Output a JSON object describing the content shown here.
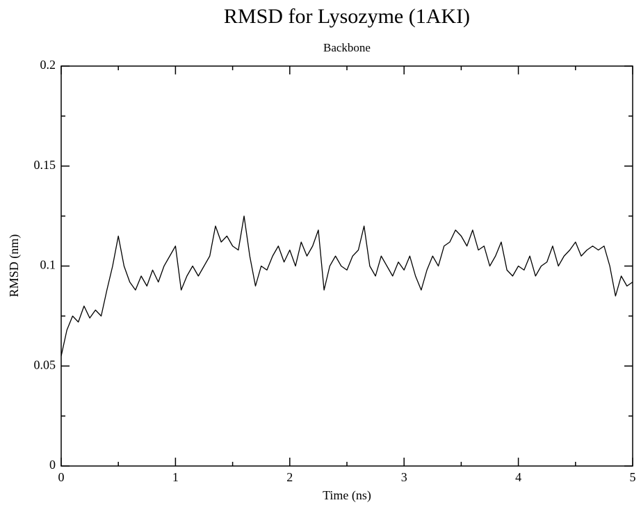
{
  "chart_data": {
    "type": "line",
    "title": "RMSD for Lysozyme (1AKI)",
    "subtitle": "Backbone",
    "x_label": "Time (ns)",
    "y_label": "RMSD (nm)",
    "xlim": [
      0,
      5
    ],
    "xticks": [
      0,
      1,
      2,
      3,
      4,
      5
    ],
    "x_minor_ticks": [
      0.5,
      1.5,
      2.5,
      3.5,
      4.5
    ],
    "ylim": [
      0,
      0.2
    ],
    "yticks": [
      0,
      0.05,
      0.1,
      0.15,
      0.2
    ],
    "y_minor_ticks": [
      0.025,
      0.075,
      0.125,
      0.175
    ],
    "series": [
      {
        "name": "Backbone",
        "color": "#000000",
        "x": [
          0,
          0.05,
          0.1,
          0.15,
          0.2,
          0.25,
          0.3,
          0.35,
          0.4,
          0.45,
          0.5,
          0.55,
          0.6,
          0.65,
          0.7,
          0.75,
          0.8,
          0.85,
          0.9,
          0.95,
          1,
          1.05,
          1.1,
          1.15,
          1.2,
          1.25,
          1.3,
          1.35,
          1.4,
          1.45,
          1.5,
          1.55,
          1.6,
          1.65,
          1.7,
          1.75,
          1.8,
          1.85,
          1.9,
          1.95,
          2,
          2.05,
          2.1,
          2.15,
          2.2,
          2.25,
          2.3,
          2.35,
          2.4,
          2.45,
          2.5,
          2.55,
          2.6,
          2.65,
          2.7,
          2.75,
          2.8,
          2.85,
          2.9,
          2.95,
          3,
          3.05,
          3.1,
          3.15,
          3.2,
          3.25,
          3.3,
          3.35,
          3.4,
          3.45,
          3.5,
          3.55,
          3.6,
          3.65,
          3.7,
          3.75,
          3.8,
          3.85,
          3.9,
          3.95,
          4,
          4.05,
          4.1,
          4.15,
          4.2,
          4.25,
          4.3,
          4.35,
          4.4,
          4.45,
          4.5,
          4.55,
          4.6,
          4.65,
          4.7,
          4.75,
          4.8,
          4.85,
          4.9,
          4.95,
          5
        ],
        "values": [
          0.055,
          0.068,
          0.075,
          0.072,
          0.08,
          0.074,
          0.078,
          0.075,
          0.088,
          0.1,
          0.115,
          0.1,
          0.092,
          0.088,
          0.095,
          0.09,
          0.098,
          0.092,
          0.1,
          0.105,
          0.11,
          0.088,
          0.095,
          0.1,
          0.095,
          0.1,
          0.105,
          0.12,
          0.112,
          0.115,
          0.11,
          0.108,
          0.125,
          0.105,
          0.09,
          0.1,
          0.098,
          0.105,
          0.11,
          0.102,
          0.108,
          0.1,
          0.112,
          0.105,
          0.11,
          0.118,
          0.088,
          0.1,
          0.105,
          0.1,
          0.098,
          0.105,
          0.108,
          0.12,
          0.1,
          0.095,
          0.105,
          0.1,
          0.095,
          0.102,
          0.098,
          0.105,
          0.095,
          0.088,
          0.098,
          0.105,
          0.1,
          0.11,
          0.112,
          0.118,
          0.115,
          0.11,
          0.118,
          0.108,
          0.11,
          0.1,
          0.105,
          0.112,
          0.098,
          0.095,
          0.1,
          0.098,
          0.105,
          0.095,
          0.1,
          0.102,
          0.11,
          0.1,
          0.105,
          0.108,
          0.112,
          0.105,
          0.108,
          0.11,
          0.108,
          0.11,
          0.1,
          0.085,
          0.095,
          0.09,
          0.092
        ]
      }
    ]
  }
}
